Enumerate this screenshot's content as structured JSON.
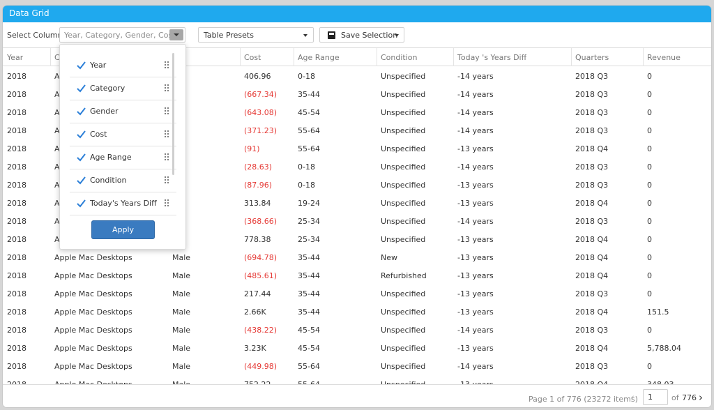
{
  "window": {
    "title": "Data Grid"
  },
  "toolbar": {
    "select_columns_label": "Select Columns",
    "select_columns_value": "Year, Category, Gender, Cos...",
    "presets_label": "Table Presets",
    "save_label": "Save Selection"
  },
  "columns": [
    {
      "key": "year",
      "label": "Year"
    },
    {
      "key": "category",
      "label": "C"
    },
    {
      "key": "gender",
      "label": "der"
    },
    {
      "key": "cost",
      "label": "Cost"
    },
    {
      "key": "age",
      "label": "Age Range"
    },
    {
      "key": "condition",
      "label": "Condition"
    },
    {
      "key": "diff",
      "label": "Today 's Years Diff"
    },
    {
      "key": "quarter",
      "label": "Quarters"
    },
    {
      "key": "revenue",
      "label": "Revenue"
    }
  ],
  "rows": [
    {
      "year": "2018",
      "category": "A",
      "gender": "ale",
      "cost": "406.96",
      "age": "0-18",
      "condition": "Unspecified",
      "diff": "-14 years",
      "quarter": "2018 Q3",
      "revenue": "0"
    },
    {
      "year": "2018",
      "category": "A",
      "gender": "ale",
      "cost": "(667.34)",
      "age": "35-44",
      "condition": "Unspecified",
      "diff": "-14 years",
      "quarter": "2018 Q3",
      "revenue": "0"
    },
    {
      "year": "2018",
      "category": "A",
      "gender": "ale",
      "cost": "(643.08)",
      "age": "45-54",
      "condition": "Unspecified",
      "diff": "-14 years",
      "quarter": "2018 Q3",
      "revenue": "0"
    },
    {
      "year": "2018",
      "category": "A",
      "gender": "ale",
      "cost": "(371.23)",
      "age": "55-64",
      "condition": "Unspecified",
      "diff": "-14 years",
      "quarter": "2018 Q3",
      "revenue": "0"
    },
    {
      "year": "2018",
      "category": "A",
      "gender": "ale",
      "cost": "(91)",
      "age": "55-64",
      "condition": "Unspecified",
      "diff": "-13 years",
      "quarter": "2018 Q4",
      "revenue": "0"
    },
    {
      "year": "2018",
      "category": "A",
      "gender": "e",
      "cost": "(28.63)",
      "age": "0-18",
      "condition": "Unspecified",
      "diff": "-14 years",
      "quarter": "2018 Q3",
      "revenue": "0"
    },
    {
      "year": "2018",
      "category": "A",
      "gender": "e",
      "cost": "(87.96)",
      "age": "0-18",
      "condition": "Unspecified",
      "diff": "-13 years",
      "quarter": "2018 Q3",
      "revenue": "0"
    },
    {
      "year": "2018",
      "category": "A",
      "gender": "e",
      "cost": "313.84",
      "age": "19-24",
      "condition": "Unspecified",
      "diff": "-13 years",
      "quarter": "2018 Q4",
      "revenue": "0"
    },
    {
      "year": "2018",
      "category": "A",
      "gender": "e",
      "cost": "(368.66)",
      "age": "25-34",
      "condition": "Unspecified",
      "diff": "-14 years",
      "quarter": "2018 Q3",
      "revenue": "0"
    },
    {
      "year": "2018",
      "category": "A",
      "gender": "e",
      "cost": "778.38",
      "age": "25-34",
      "condition": "Unspecified",
      "diff": "-13 years",
      "quarter": "2018 Q4",
      "revenue": "0"
    },
    {
      "year": "2018",
      "category": "Apple Mac Desktops",
      "gender": "Male",
      "cost": "(694.78)",
      "age": "35-44",
      "condition": "New",
      "diff": "-13 years",
      "quarter": "2018 Q4",
      "revenue": "0"
    },
    {
      "year": "2018",
      "category": "Apple Mac Desktops",
      "gender": "Male",
      "cost": "(485.61)",
      "age": "35-44",
      "condition": "Refurbished",
      "diff": "-13 years",
      "quarter": "2018 Q4",
      "revenue": "0"
    },
    {
      "year": "2018",
      "category": "Apple Mac Desktops",
      "gender": "Male",
      "cost": "217.44",
      "age": "35-44",
      "condition": "Unspecified",
      "diff": "-13 years",
      "quarter": "2018 Q3",
      "revenue": "0"
    },
    {
      "year": "2018",
      "category": "Apple Mac Desktops",
      "gender": "Male",
      "cost": "2.66K",
      "age": "35-44",
      "condition": "Unspecified",
      "diff": "-13 years",
      "quarter": "2018 Q4",
      "revenue": "151.5"
    },
    {
      "year": "2018",
      "category": "Apple Mac Desktops",
      "gender": "Male",
      "cost": "(438.22)",
      "age": "45-54",
      "condition": "Unspecified",
      "diff": "-14 years",
      "quarter": "2018 Q3",
      "revenue": "0"
    },
    {
      "year": "2018",
      "category": "Apple Mac Desktops",
      "gender": "Male",
      "cost": "3.23K",
      "age": "45-54",
      "condition": "Unspecified",
      "diff": "-13 years",
      "quarter": "2018 Q4",
      "revenue": "5,788.04"
    },
    {
      "year": "2018",
      "category": "Apple Mac Desktops",
      "gender": "Male",
      "cost": "(449.98)",
      "age": "55-64",
      "condition": "Unspecified",
      "diff": "-14 years",
      "quarter": "2018 Q3",
      "revenue": "0"
    },
    {
      "year": "2018",
      "category": "Apple Mac Desktops",
      "gender": "Male",
      "cost": "752.22",
      "age": "55-64",
      "condition": "Unspecified",
      "diff": "-13 years",
      "quarter": "2018 Q4",
      "revenue": "348.03"
    }
  ],
  "dropdown": {
    "items": [
      {
        "label": "Year",
        "checked": true
      },
      {
        "label": "Category",
        "checked": true
      },
      {
        "label": "Gender",
        "checked": true
      },
      {
        "label": "Cost",
        "checked": true
      },
      {
        "label": "Age Range",
        "checked": true
      },
      {
        "label": "Condition",
        "checked": true
      },
      {
        "label": "Today's Years Diff",
        "checked": true
      }
    ],
    "apply_label": "Apply"
  },
  "pager": {
    "info": "Page 1 of 776 (23272 items)",
    "current_page": "1",
    "of_label": "of",
    "total_pages": "776"
  },
  "icons": {
    "check": "check-icon",
    "grip": "drag-handle-icon",
    "save": "floppy-disk-icon",
    "prev": "chevron-left-icon",
    "next": "chevron-right-icon"
  },
  "colors": {
    "titlebar": "#1fa9ee",
    "negative": "#e53935",
    "apply_button": "#3a7bc0",
    "checkbox": "#2b7fd8"
  }
}
